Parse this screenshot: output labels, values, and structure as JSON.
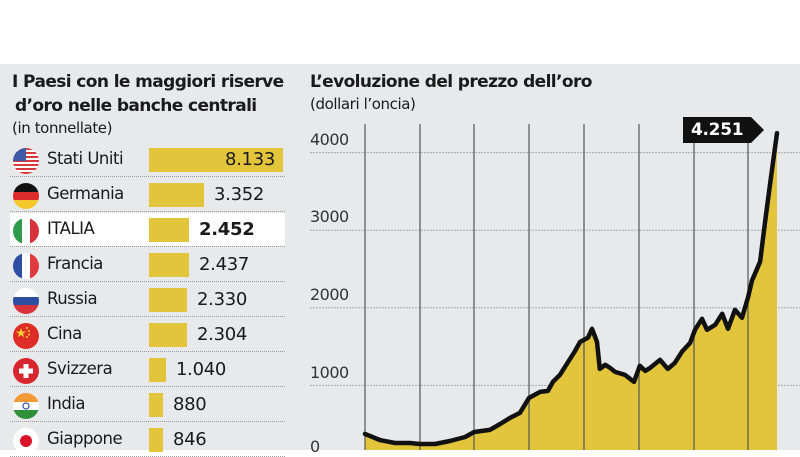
{
  "left_panel": {
    "title_line1": "I Paesi con le maggiori riserve",
    "title_line2": "d’oro nelle banche centrali",
    "subtitle": "(in tonnellate)",
    "rows": [
      {
        "country": "Stati Uniti",
        "value": "8.133",
        "tonnes": 8133,
        "flag": "usa-flag",
        "highlight": false
      },
      {
        "country": "Germania",
        "value": "3.352",
        "tonnes": 3352,
        "flag": "germany-flag",
        "highlight": false
      },
      {
        "country": "ITALIA",
        "value": "2.452",
        "tonnes": 2452,
        "flag": "italy-flag",
        "highlight": true
      },
      {
        "country": "Francia",
        "value": "2.437",
        "tonnes": 2437,
        "flag": "france-flag",
        "highlight": false
      },
      {
        "country": "Russia",
        "value": "2.330",
        "tonnes": 2330,
        "flag": "russia-flag",
        "highlight": false
      },
      {
        "country": "Cina",
        "value": "2.304",
        "tonnes": 2304,
        "flag": "china-flag",
        "highlight": false
      },
      {
        "country": "Svizzera",
        "value": "1.040",
        "tonnes": 1040,
        "flag": "switzerland-flag",
        "highlight": false
      },
      {
        "country": "India",
        "value": "880",
        "tonnes": 880,
        "flag": "india-flag",
        "highlight": false
      },
      {
        "country": "Giappone",
        "value": "846",
        "tonnes": 846,
        "flag": "japan-flag",
        "highlight": false
      }
    ]
  },
  "right_panel": {
    "title": "L’evoluzione del prezzo dell’oro",
    "subtitle": "(dollari l’oncia)",
    "y_ticks": [
      "4000",
      "3000",
      "2000",
      "1000",
      "0"
    ],
    "callout": "4.251"
  },
  "colors": {
    "bar": "#e3c53c",
    "area_fill": "#e3c53c",
    "line": "#111111",
    "panel_bg": "#e8e9eb",
    "highlight_row": "#ffffff"
  },
  "chart_data": [
    {
      "type": "bar",
      "orientation": "horizontal",
      "title": "I Paesi con le maggiori riserve d’oro nelle banche centrali",
      "subtitle": "(in tonnellate)",
      "categories": [
        "Stati Uniti",
        "Germania",
        "ITALIA",
        "Francia",
        "Russia",
        "Cina",
        "Svizzera",
        "India",
        "Giappone"
      ],
      "values": [
        8133,
        3352,
        2452,
        2437,
        2330,
        2304,
        1040,
        880,
        846
      ],
      "highlighted": "ITALIA",
      "unit": "tonnellate"
    },
    {
      "type": "area",
      "title": "L’evoluzione del prezzo dell’oro",
      "subtitle": "(dollari l’oncia)",
      "ylabel": "dollari l’oncia",
      "ylim": [
        0,
        4300
      ],
      "yticks": [
        0,
        1000,
        2000,
        3000,
        4000
      ],
      "grid": true,
      "x_note": "unlabeled time axis; 8 vertical gridlines; x given as fraction of plot width",
      "annotation": {
        "text": "4.251",
        "value": 4251,
        "position": "last point"
      },
      "points": [
        [
          0.0,
          375
        ],
        [
          0.036,
          297
        ],
        [
          0.073,
          258
        ],
        [
          0.109,
          258
        ],
        [
          0.133,
          245
        ],
        [
          0.17,
          245
        ],
        [
          0.206,
          284
        ],
        [
          0.243,
          335
        ],
        [
          0.265,
          400
        ],
        [
          0.303,
          426
        ],
        [
          0.328,
          503
        ],
        [
          0.352,
          581
        ],
        [
          0.376,
          645
        ],
        [
          0.398,
          839
        ],
        [
          0.425,
          916
        ],
        [
          0.444,
          929
        ],
        [
          0.456,
          1045
        ],
        [
          0.473,
          1135
        ],
        [
          0.493,
          1303
        ],
        [
          0.51,
          1445
        ],
        [
          0.522,
          1561
        ],
        [
          0.541,
          1613
        ],
        [
          0.551,
          1729
        ],
        [
          0.563,
          1561
        ],
        [
          0.57,
          1213
        ],
        [
          0.583,
          1265
        ],
        [
          0.595,
          1226
        ],
        [
          0.607,
          1174
        ],
        [
          0.631,
          1135
        ],
        [
          0.653,
          1045
        ],
        [
          0.667,
          1252
        ],
        [
          0.68,
          1187
        ],
        [
          0.692,
          1226
        ],
        [
          0.716,
          1329
        ],
        [
          0.735,
          1213
        ],
        [
          0.752,
          1290
        ],
        [
          0.769,
          1432
        ],
        [
          0.789,
          1548
        ],
        [
          0.801,
          1716
        ],
        [
          0.818,
          1858
        ],
        [
          0.83,
          1716
        ],
        [
          0.85,
          1781
        ],
        [
          0.867,
          1923
        ],
        [
          0.881,
          1729
        ],
        [
          0.898,
          1974
        ],
        [
          0.915,
          1871
        ],
        [
          0.93,
          2142
        ],
        [
          0.939,
          2348
        ],
        [
          0.959,
          2594
        ],
        [
          0.971,
          3110
        ],
        [
          0.983,
          3587
        ],
        [
          1.0,
          4251
        ]
      ]
    }
  ]
}
